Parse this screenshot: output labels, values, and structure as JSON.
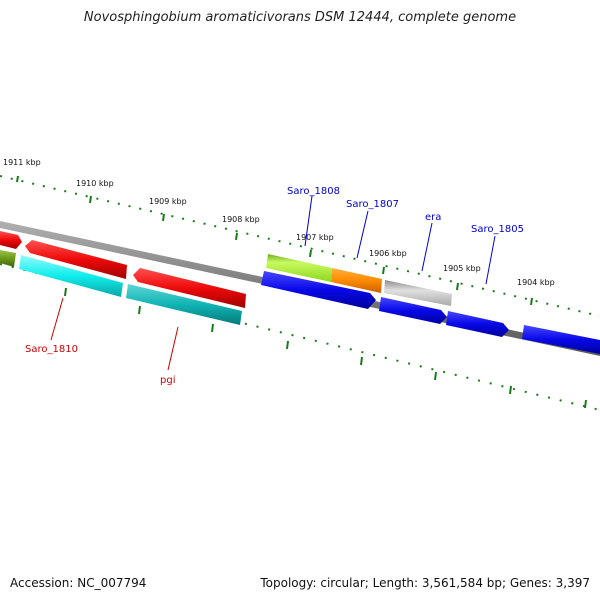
{
  "title": "Novosphingobium aromaticivorans DSM 12444, complete genome",
  "footer": {
    "accession": "Accession: NC_007794",
    "stats": "Topology: circular; Length: 3,561,584 bp; Genes: 3,397"
  },
  "kbp_ticks": [
    "1911 kbp",
    "1910 kbp",
    "1909 kbp",
    "1908 kbp",
    "1907 kbp",
    "1906 kbp",
    "1905 kbp",
    "1904 kbp"
  ],
  "gene_labels": {
    "top": [
      "Saro_1808",
      "Saro_1807",
      "era",
      "Saro_1805"
    ],
    "bottom": [
      "Saro_1810",
      "pgi"
    ]
  },
  "colors": {
    "backbone": "#808080",
    "tick": "#1a7a1a",
    "label_top": "#0000cc",
    "label_bottom": "#cc0000",
    "red": "#ee1111",
    "cyan": "#11e8e8",
    "teal": "#10b8b8",
    "olive": "#6b9a1a",
    "lime": "#a8ee30",
    "orange": "#ff8c00",
    "grey": "#b0b0b0",
    "blue": "#0a0ae8"
  }
}
